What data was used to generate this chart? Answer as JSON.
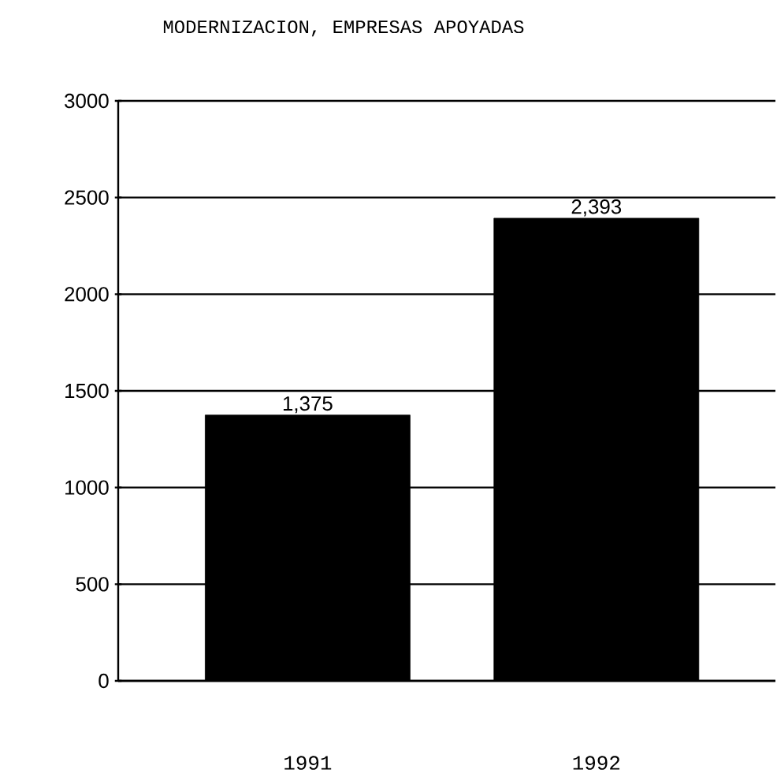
{
  "chart_data": {
    "type": "bar",
    "title": "MODERNIZACION, EMPRESAS APOYADAS",
    "categories": [
      "1991",
      "1992"
    ],
    "values": [
      1375,
      2393
    ],
    "value_labels": [
      "1,375",
      "2,393"
    ],
    "color": "#000000",
    "ylim": [
      0,
      3000
    ],
    "yticks": [
      0,
      500,
      1000,
      1500,
      2000,
      2500,
      3000
    ],
    "grid": "y"
  }
}
